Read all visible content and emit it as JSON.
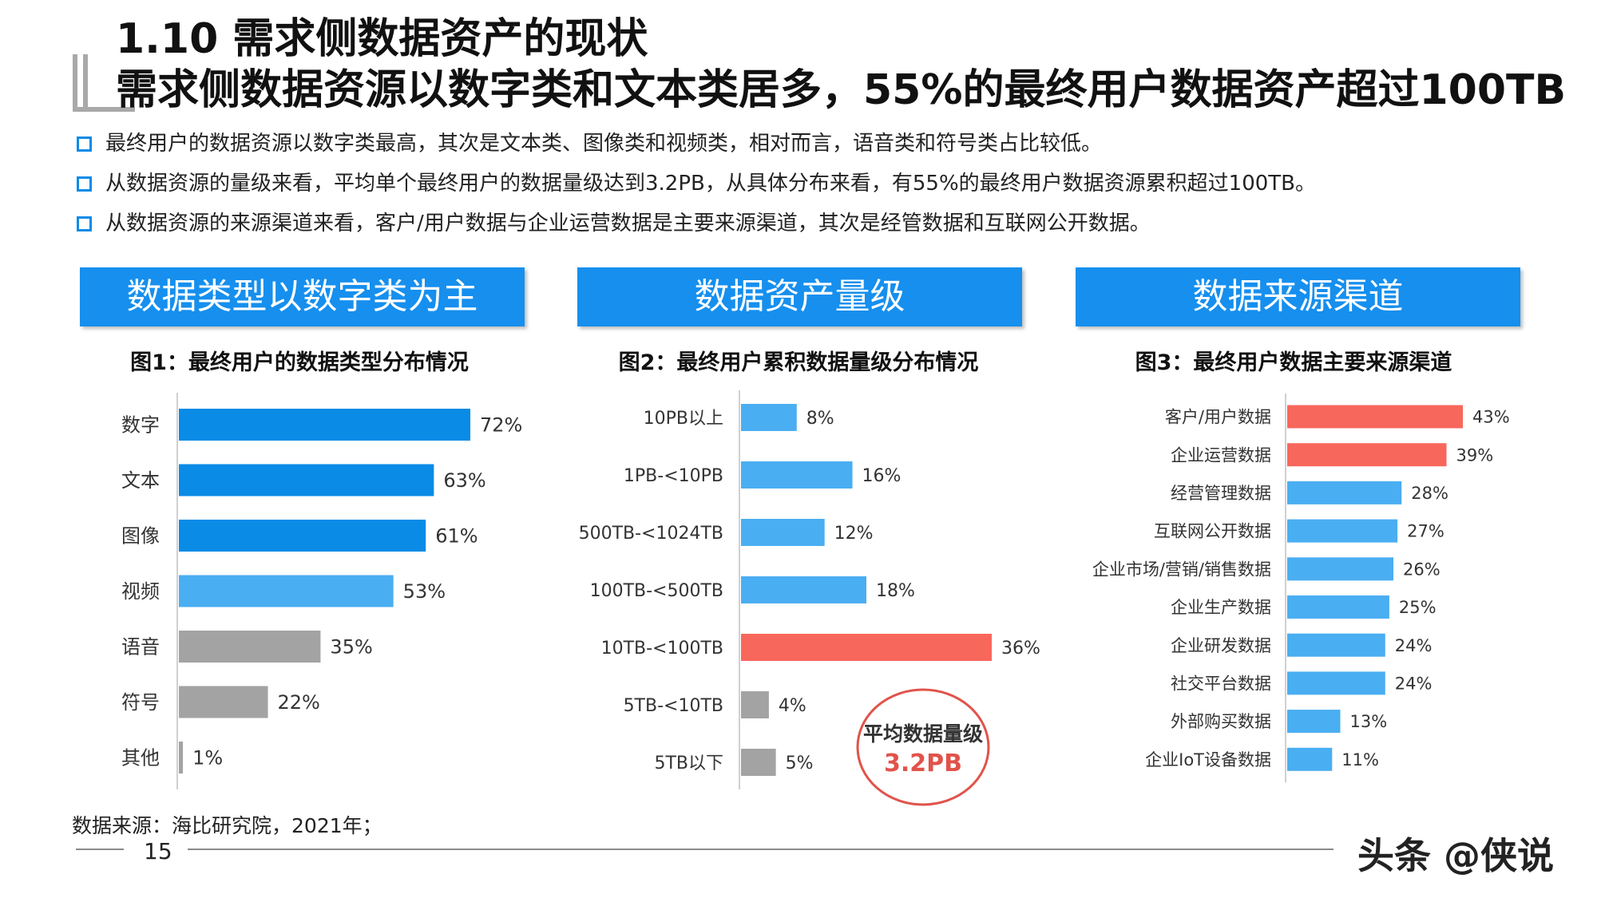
{
  "header": {
    "title_line1": "1.10 需求侧数据资产的现状",
    "title_line2": "需求侧数据资源以数字类和文本类居多，55%的最终用户数据资产超过100TB"
  },
  "bullets": [
    "最终用户的数据资源以数字类最高，其次是文本类、图像类和视频类，相对而言，语音类和符号类占比较低。",
    "从数据资源的量级来看，平均单个最终用户的数据量级达到3.2PB，从具体分布来看，有55%的最终用户数据资源累积超过100TB。",
    "从数据资源的来源渠道来看，客户/用户数据与企业运营数据是主要来源渠道，其次是经管数据和互联网公开数据。"
  ],
  "sections": {
    "s1": "数据类型以数字类为主",
    "s2": "数据资产量级",
    "s3": "数据来源渠道"
  },
  "callout": {
    "line1": "平均数据量级",
    "line2": "3.2PB"
  },
  "footer": {
    "source": "数据来源：海比研究院，2021年；",
    "page": "15",
    "watermark": "头条 @侠说"
  },
  "colors": {
    "header_blue": "#168fee",
    "bar_blue": "#0a8be6",
    "bar_lightblue": "#4aaef2",
    "bar_gray": "#a3a3a3",
    "bar_red": "#f8675b"
  },
  "chart_data": [
    {
      "type": "bar",
      "orientation": "horizontal",
      "title": "图1：最终用户的数据类型分布情况",
      "categories": [
        "数字",
        "文本",
        "图像",
        "视频",
        "语音",
        "符号",
        "其他"
      ],
      "values": [
        72,
        63,
        61,
        53,
        35,
        22,
        1
      ],
      "labels": [
        "72%",
        "63%",
        "61%",
        "53%",
        "35%",
        "22%",
        "1%"
      ],
      "colors": [
        "#0a8be6",
        "#0a8be6",
        "#0a8be6",
        "#4aaef2",
        "#a3a3a3",
        "#a3a3a3",
        "#a3a3a3"
      ],
      "xlim": [
        0,
        72
      ]
    },
    {
      "type": "bar",
      "orientation": "horizontal",
      "title": "图2：最终用户累积数据量级分布情况",
      "categories": [
        "10PB以上",
        "1PB-<10PB",
        "500TB-<1024TB",
        "100TB-<500TB",
        "10TB-<100TB",
        "5TB-<10TB",
        "5TB以下"
      ],
      "values": [
        8,
        16,
        12,
        18,
        36,
        4,
        5
      ],
      "labels": [
        "8%",
        "16%",
        "12%",
        "18%",
        "36%",
        "4%",
        "5%"
      ],
      "colors": [
        "#4aaef2",
        "#4aaef2",
        "#4aaef2",
        "#4aaef2",
        "#f8675b",
        "#a3a3a3",
        "#a3a3a3"
      ],
      "xlim": [
        0,
        36
      ]
    },
    {
      "type": "bar",
      "orientation": "horizontal",
      "title": "图3：最终用户数据主要来源渠道",
      "categories": [
        "客户/用户数据",
        "企业运营数据",
        "经营管理数据",
        "互联网公开数据",
        "企业市场/营销/销售数据",
        "企业生产数据",
        "企业研发数据",
        "社交平台数据",
        "外部购买数据",
        "企业IoT设备数据"
      ],
      "values": [
        43,
        39,
        28,
        27,
        26,
        25,
        24,
        24,
        13,
        11
      ],
      "labels": [
        "43%",
        "39%",
        "28%",
        "27%",
        "26%",
        "25%",
        "24%",
        "24%",
        "13%",
        "11%"
      ],
      "colors": [
        "#f8675b",
        "#f8675b",
        "#4aaef2",
        "#4aaef2",
        "#4aaef2",
        "#4aaef2",
        "#4aaef2",
        "#4aaef2",
        "#4aaef2",
        "#4aaef2"
      ],
      "xlim": [
        0,
        43
      ]
    }
  ]
}
